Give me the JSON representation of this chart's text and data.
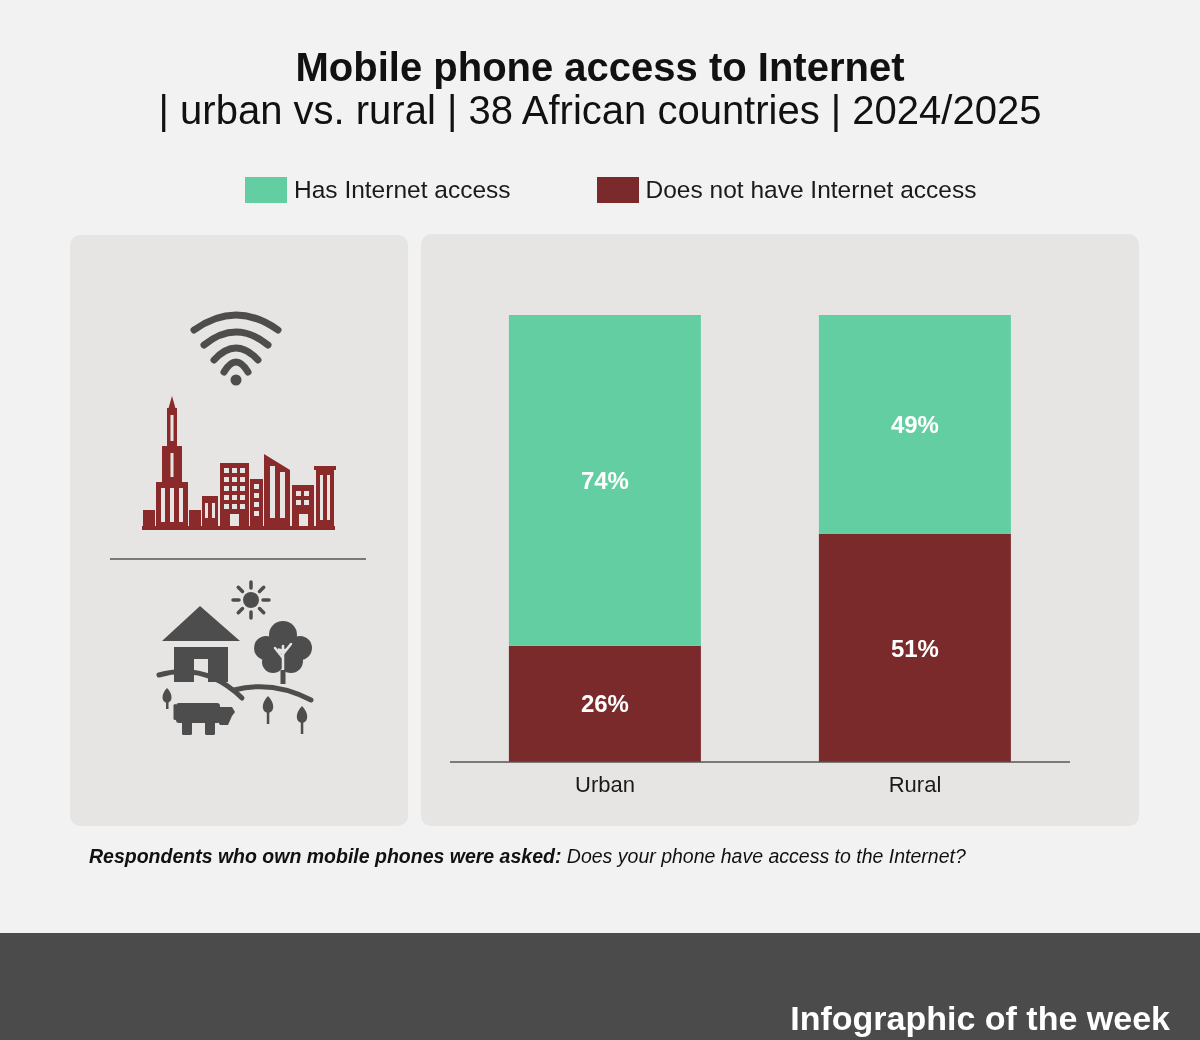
{
  "chart_data": {
    "type": "bar",
    "title": "Mobile phone access to Internet",
    "subtitle": "| urban vs. rural | 38 African countries | 2024/2025",
    "categories": [
      "Urban",
      "Rural"
    ],
    "stacked": true,
    "tick_labels": "x",
    "grid": false,
    "legend": "top",
    "series": [
      {
        "name": "Does not have Internet access",
        "color": "#7b2a2b",
        "values": [
          26,
          51
        ],
        "value_labels": [
          "26%",
          "51%"
        ]
      },
      {
        "name": "Has Internet access",
        "color": "#64cea3",
        "values": [
          74,
          49
        ],
        "value_labels": [
          "74%",
          "49%"
        ]
      }
    ],
    "annotations": [
      "Respondents who own mobile phones were asked:",
      "Does your phone have access to the Internet?",
      "Infographic of the week"
    ]
  }
}
